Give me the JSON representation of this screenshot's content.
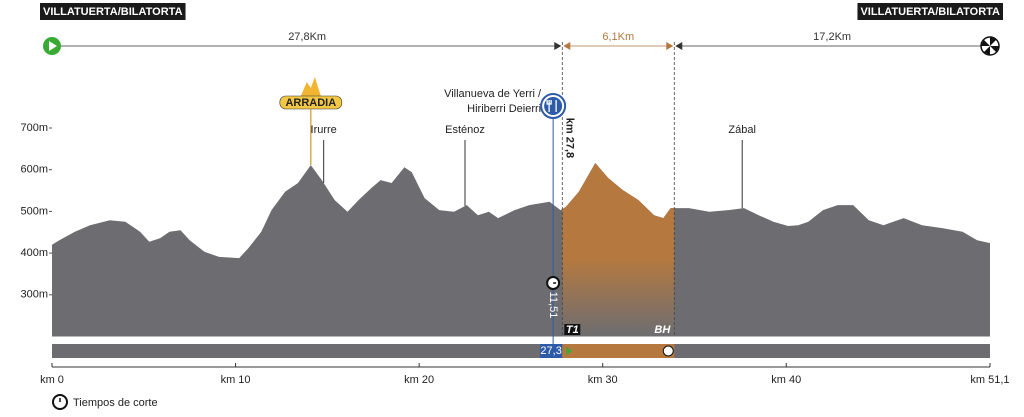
{
  "chart_data": {
    "type": "area",
    "start": "VILLATUERTA/BILATORTA",
    "finish": "VILLATUERTA/BILATORTA",
    "color": "#6d6d71",
    "x": [
      0,
      0.4,
      1.25,
      2.07,
      3.15,
      4.0,
      4.8,
      5.3,
      5.9,
      6.4,
      7.0,
      7.5,
      8.3,
      9.1,
      10.2,
      10.7,
      11.4,
      11.96,
      12.7,
      13.4,
      14.1,
      14.7,
      15.4,
      16.1,
      16.7,
      17.4,
      17.9,
      18.5,
      19.2,
      19.6,
      20.3,
      21.1,
      21.9,
      22.6,
      23.2,
      23.8,
      24.3,
      25.2,
      26.0,
      27.1,
      27.7,
      28.0,
      28.7,
      29.6,
      30.3,
      31.1,
      31.95,
      32.8,
      33.3,
      33.7,
      34.7,
      35.8,
      36.85,
      37.7,
      38.5,
      39.3,
      40.1,
      40.65,
      41.2,
      42.0,
      42.8,
      43.65,
      44.5,
      45.3,
      46.4,
      47.4,
      48.5,
      49.6,
      50.4,
      51.1
    ],
    "values": [
      420,
      431,
      451,
      467,
      479,
      475,
      451,
      427,
      436,
      451,
      455,
      431,
      403,
      391,
      388,
      412,
      451,
      503,
      547,
      568,
      611,
      575,
      527,
      499,
      527,
      556,
      575,
      568,
      606,
      594,
      532,
      503,
      499,
      515,
      491,
      499,
      484,
      503,
      515,
      523,
      503,
      511,
      547,
      616,
      580,
      551,
      527,
      491,
      484,
      508,
      508,
      499,
      503,
      508,
      491,
      475,
      465,
      467,
      475,
      503,
      515,
      515,
      479,
      467,
      484,
      467,
      460,
      451,
      431,
      424
    ],
    "xlim": [
      0,
      51.1
    ],
    "xticks": [
      {
        "value": 0,
        "label": "km 0"
      },
      {
        "value": 10,
        "label": "km 10"
      },
      {
        "value": 20,
        "label": "km 20"
      },
      {
        "value": 30,
        "label": "km 30"
      },
      {
        "value": 40,
        "label": "km 40"
      },
      {
        "value": 51.1,
        "label": "km 51,1"
      }
    ],
    "ylim": [
      200,
      900
    ],
    "yticks": [
      {
        "value": 300,
        "label": "300m"
      },
      {
        "value": 400,
        "label": "400m"
      },
      {
        "value": 500,
        "label": "500m"
      },
      {
        "value": 600,
        "label": "600m"
      },
      {
        "value": 700,
        "label": "700m"
      }
    ],
    "sections": [
      {
        "label": "27,8Km",
        "distance": 27.8,
        "color": "#333333"
      },
      {
        "label": "6,1Km",
        "distance": 6.1,
        "color": "#b5793f"
      },
      {
        "label": "17,2Km",
        "distance": 17.2,
        "color": "#333333"
      }
    ],
    "climb": {
      "label": "ARRADIA",
      "x": 14.1
    },
    "places": [
      {
        "label": "Irurre",
        "x": 14.8
      },
      {
        "label": "Esténoz",
        "x": 22.5
      },
      {
        "label": "Zábal",
        "x": 37.6
      }
    ],
    "feed": {
      "lines": [
        "Villanueva de Yerri /",
        "Hiriberri Deierri"
      ],
      "x": 27.3,
      "km_label": "km 27,8"
    },
    "cutoff": {
      "label": "11,51",
      "x": 27.3
    },
    "bar_marker": {
      "value": 27.3,
      "label": "27,3"
    },
    "transition": "T1",
    "sponsor": "BH",
    "legend": "Tiempos de corte"
  }
}
